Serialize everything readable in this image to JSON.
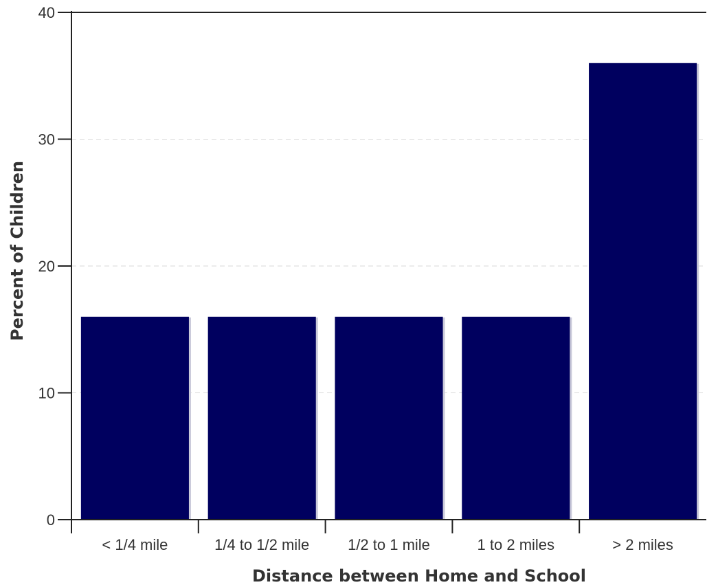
{
  "chart_data": {
    "type": "bar",
    "categories": [
      "< 1/4 mile",
      "1/4 to 1/2 mile",
      "1/2 to 1 mile",
      "1 to 2 miles",
      "> 2 miles"
    ],
    "values": [
      16,
      16,
      16,
      16,
      36
    ],
    "title": "",
    "xlabel": "Distance between Home and School",
    "ylabel": "Percent of Children",
    "ylim": [
      0,
      40
    ],
    "yticks": [
      0,
      10,
      20,
      30,
      40
    ],
    "grid": true,
    "legend": "none",
    "bar_color": "#00005f",
    "bar_shadow_color": "#c9c9d9"
  }
}
